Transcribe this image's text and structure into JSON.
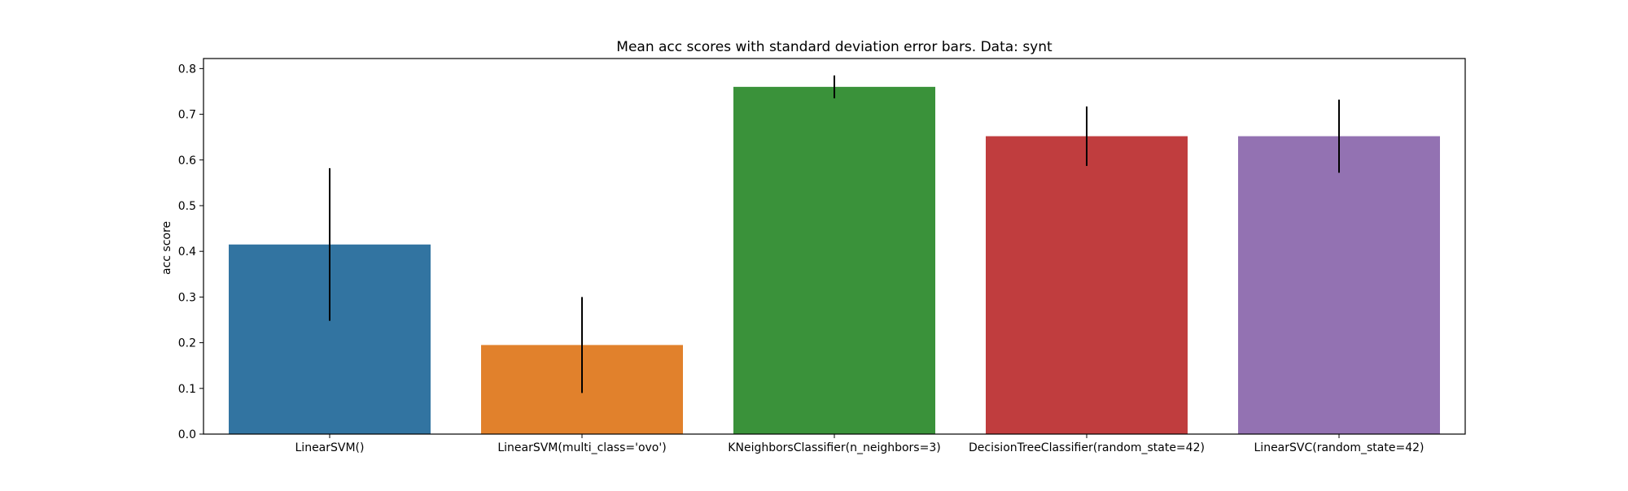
{
  "chart_data": {
    "type": "bar",
    "title": "Mean acc scores with standard deviation error bars. Data: synt",
    "xlabel": "",
    "ylabel": "acc score",
    "ylim": [
      0,
      0.822
    ],
    "yticks": [
      "0.0",
      "0.1",
      "0.2",
      "0.3",
      "0.4",
      "0.5",
      "0.6",
      "0.7",
      "0.8"
    ],
    "grid": false,
    "categories": [
      "LinearSVM()",
      "LinearSVM(multi_class='ovo')",
      "KNeighborsClassifier(n_neighbors=3)",
      "DecisionTreeClassifier(random_state=42)",
      "LinearSVC(random_state=42)"
    ],
    "values": [
      0.415,
      0.195,
      0.76,
      0.652,
      0.652
    ],
    "error": [
      0.167,
      0.105,
      0.025,
      0.065,
      0.08
    ],
    "colors": [
      "#3274a1",
      "#e1812c",
      "#3a923a",
      "#c03d3e",
      "#9372b2"
    ]
  }
}
